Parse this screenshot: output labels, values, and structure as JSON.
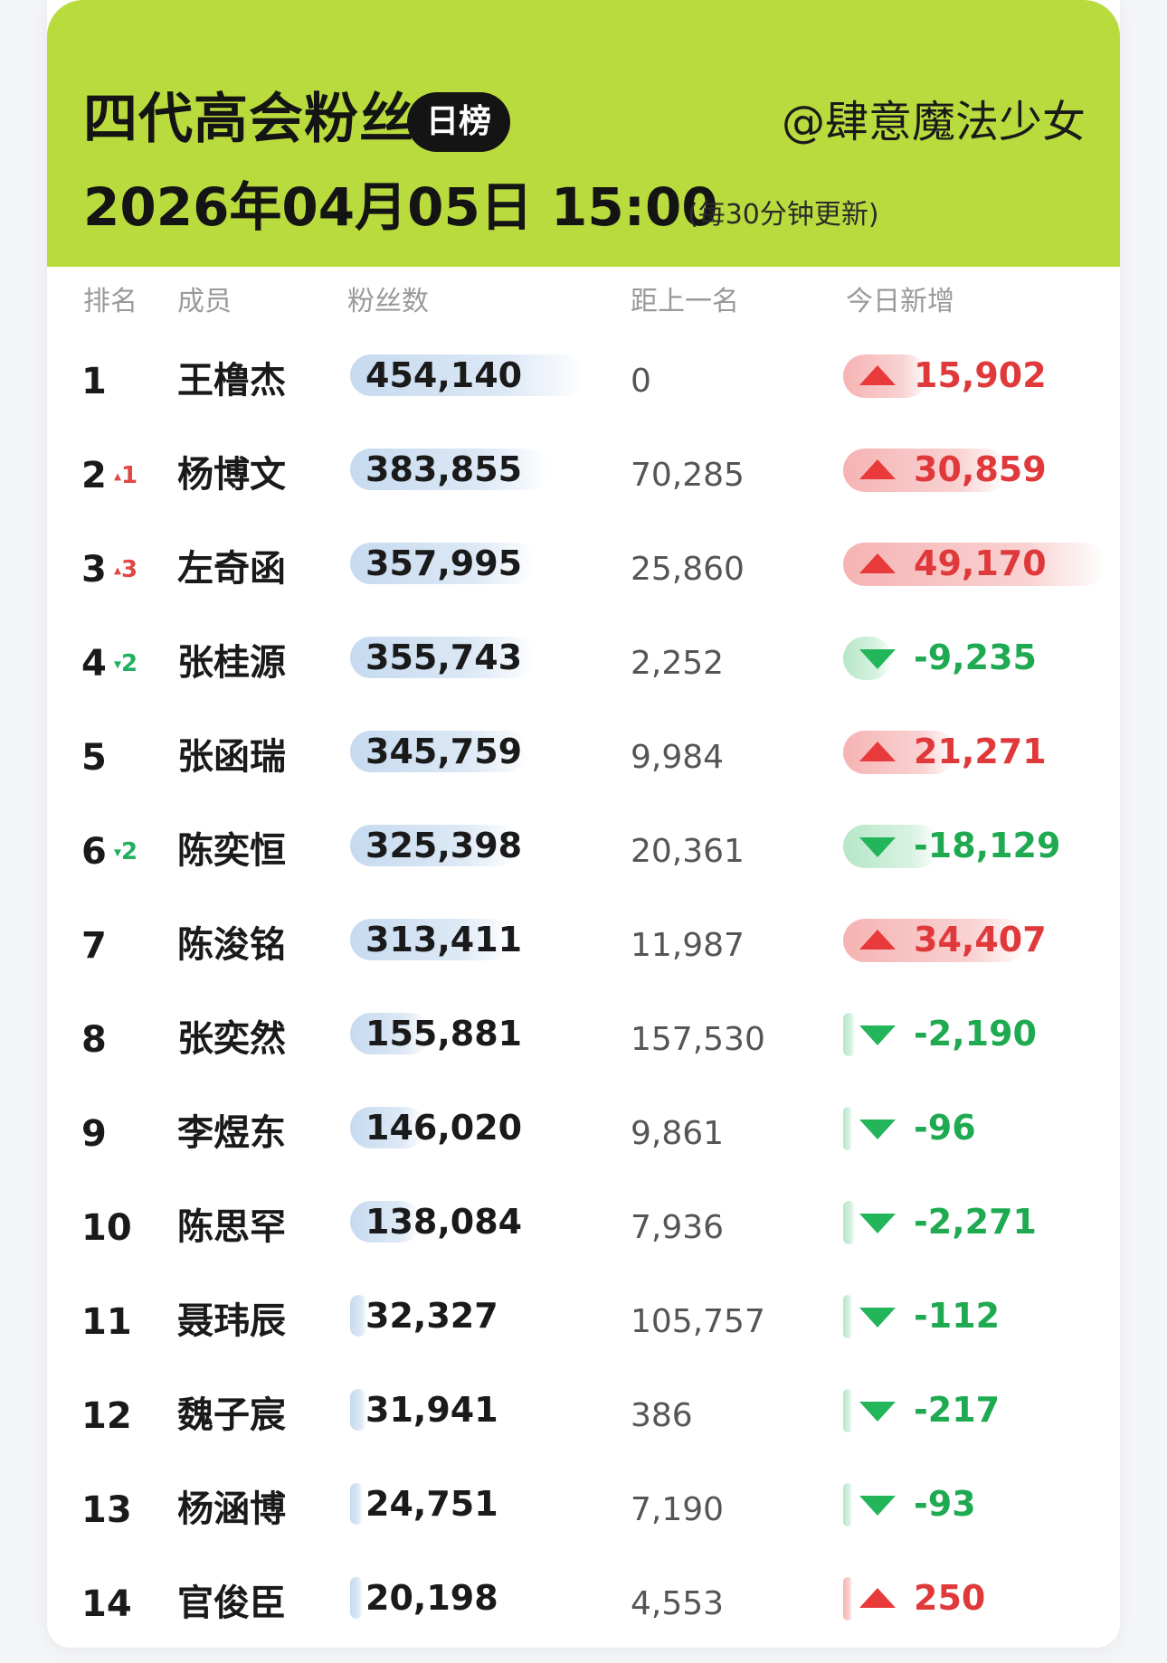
{
  "header": {
    "title": "四代高会粉丝",
    "badge": "日榜",
    "author": "@肆意魔法少女",
    "datetime": "2026年04月05日 15:00",
    "update_note": "(每30分钟更新)",
    "background_color": "#badb3e"
  },
  "columns": {
    "rank": "排名",
    "member": "成员",
    "fans": "粉丝数",
    "gap": "距上一名",
    "daily": "今日新增"
  },
  "colors": {
    "up": "#e0393b",
    "down": "#1faa52",
    "fans_bar": "#c6daf0"
  },
  "rows": [
    {
      "rank": "1",
      "move": "",
      "move_dir": "",
      "name": "王橹杰",
      "fans": "454,140",
      "fans_value": 454140,
      "gap": "0",
      "delta": "15,902",
      "delta_dir": "up",
      "delta_value": 15902
    },
    {
      "rank": "2",
      "move": "1",
      "move_dir": "up",
      "name": "杨博文",
      "fans": "383,855",
      "fans_value": 383855,
      "gap": "70,285",
      "delta": "30,859",
      "delta_dir": "up",
      "delta_value": 30859
    },
    {
      "rank": "3",
      "move": "3",
      "move_dir": "up",
      "name": "左奇函",
      "fans": "357,995",
      "fans_value": 357995,
      "gap": "25,860",
      "delta": "49,170",
      "delta_dir": "up",
      "delta_value": 49170
    },
    {
      "rank": "4",
      "move": "2",
      "move_dir": "down",
      "name": "张桂源",
      "fans": "355,743",
      "fans_value": 355743,
      "gap": "2,252",
      "delta": "-9,235",
      "delta_dir": "down",
      "delta_value": -9235
    },
    {
      "rank": "5",
      "move": "",
      "move_dir": "",
      "name": "张函瑞",
      "fans": "345,759",
      "fans_value": 345759,
      "gap": "9,984",
      "delta": "21,271",
      "delta_dir": "up",
      "delta_value": 21271
    },
    {
      "rank": "6",
      "move": "2",
      "move_dir": "down",
      "name": "陈奕恒",
      "fans": "325,398",
      "fans_value": 325398,
      "gap": "20,361",
      "delta": "-18,129",
      "delta_dir": "down",
      "delta_value": -18129
    },
    {
      "rank": "7",
      "move": "",
      "move_dir": "",
      "name": "陈浚铭",
      "fans": "313,411",
      "fans_value": 313411,
      "gap": "11,987",
      "delta": "34,407",
      "delta_dir": "up",
      "delta_value": 34407
    },
    {
      "rank": "8",
      "move": "",
      "move_dir": "",
      "name": "张奕然",
      "fans": "155,881",
      "fans_value": 155881,
      "gap": "157,530",
      "delta": "-2,190",
      "delta_dir": "down",
      "delta_value": -2190
    },
    {
      "rank": "9",
      "move": "",
      "move_dir": "",
      "name": "李煜东",
      "fans": "146,020",
      "fans_value": 146020,
      "gap": "9,861",
      "delta": "-96",
      "delta_dir": "down",
      "delta_value": -96
    },
    {
      "rank": "10",
      "move": "",
      "move_dir": "",
      "name": "陈思罕",
      "fans": "138,084",
      "fans_value": 138084,
      "gap": "7,936",
      "delta": "-2,271",
      "delta_dir": "down",
      "delta_value": -2271
    },
    {
      "rank": "11",
      "move": "",
      "move_dir": "",
      "name": "聂玮辰",
      "fans": "32,327",
      "fans_value": 32327,
      "gap": "105,757",
      "delta": "-112",
      "delta_dir": "down",
      "delta_value": -112
    },
    {
      "rank": "12",
      "move": "",
      "move_dir": "",
      "name": "魏子宸",
      "fans": "31,941",
      "fans_value": 31941,
      "gap": "386",
      "delta": "-217",
      "delta_dir": "down",
      "delta_value": -217
    },
    {
      "rank": "13",
      "move": "",
      "move_dir": "",
      "name": "杨涵博",
      "fans": "24,751",
      "fans_value": 24751,
      "gap": "7,190",
      "delta": "-93",
      "delta_dir": "down",
      "delta_value": -93
    },
    {
      "rank": "14",
      "move": "",
      "move_dir": "",
      "name": "官俊臣",
      "fans": "20,198",
      "fans_value": 20198,
      "gap": "4,553",
      "delta": "250",
      "delta_dir": "up",
      "delta_value": 250
    }
  ]
}
